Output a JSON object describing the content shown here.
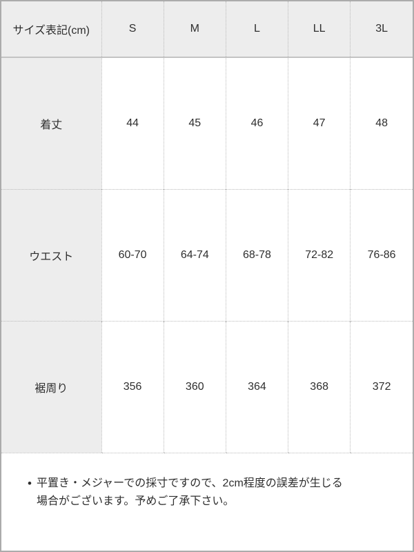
{
  "colors": {
    "panel_border": "#ababab",
    "header_bg": "#ededed",
    "label_col_bg": "#ededed",
    "solid_divider": "#c3c3c3",
    "dotted_divider": "#b9b9b9",
    "text": "#2e2e2e"
  },
  "table": {
    "header": [
      "サイズ表記(cm)",
      "S",
      "M",
      "L",
      "LL",
      "3L"
    ],
    "rows": [
      {
        "label": "着丈",
        "values": [
          "44",
          "45",
          "46",
          "47",
          "48"
        ]
      },
      {
        "label": "ウエスト",
        "values": [
          "60-70",
          "64-74",
          "68-78",
          "72-82",
          "76-86"
        ]
      },
      {
        "label": "裾周り",
        "values": [
          "356",
          "360",
          "364",
          "368",
          "372"
        ]
      }
    ]
  },
  "note": {
    "bullet": "•",
    "text": "平置き・メジャーでの採寸ですので、2cm程度の誤差が生じる場合がございます。予めご了承下さい。"
  }
}
